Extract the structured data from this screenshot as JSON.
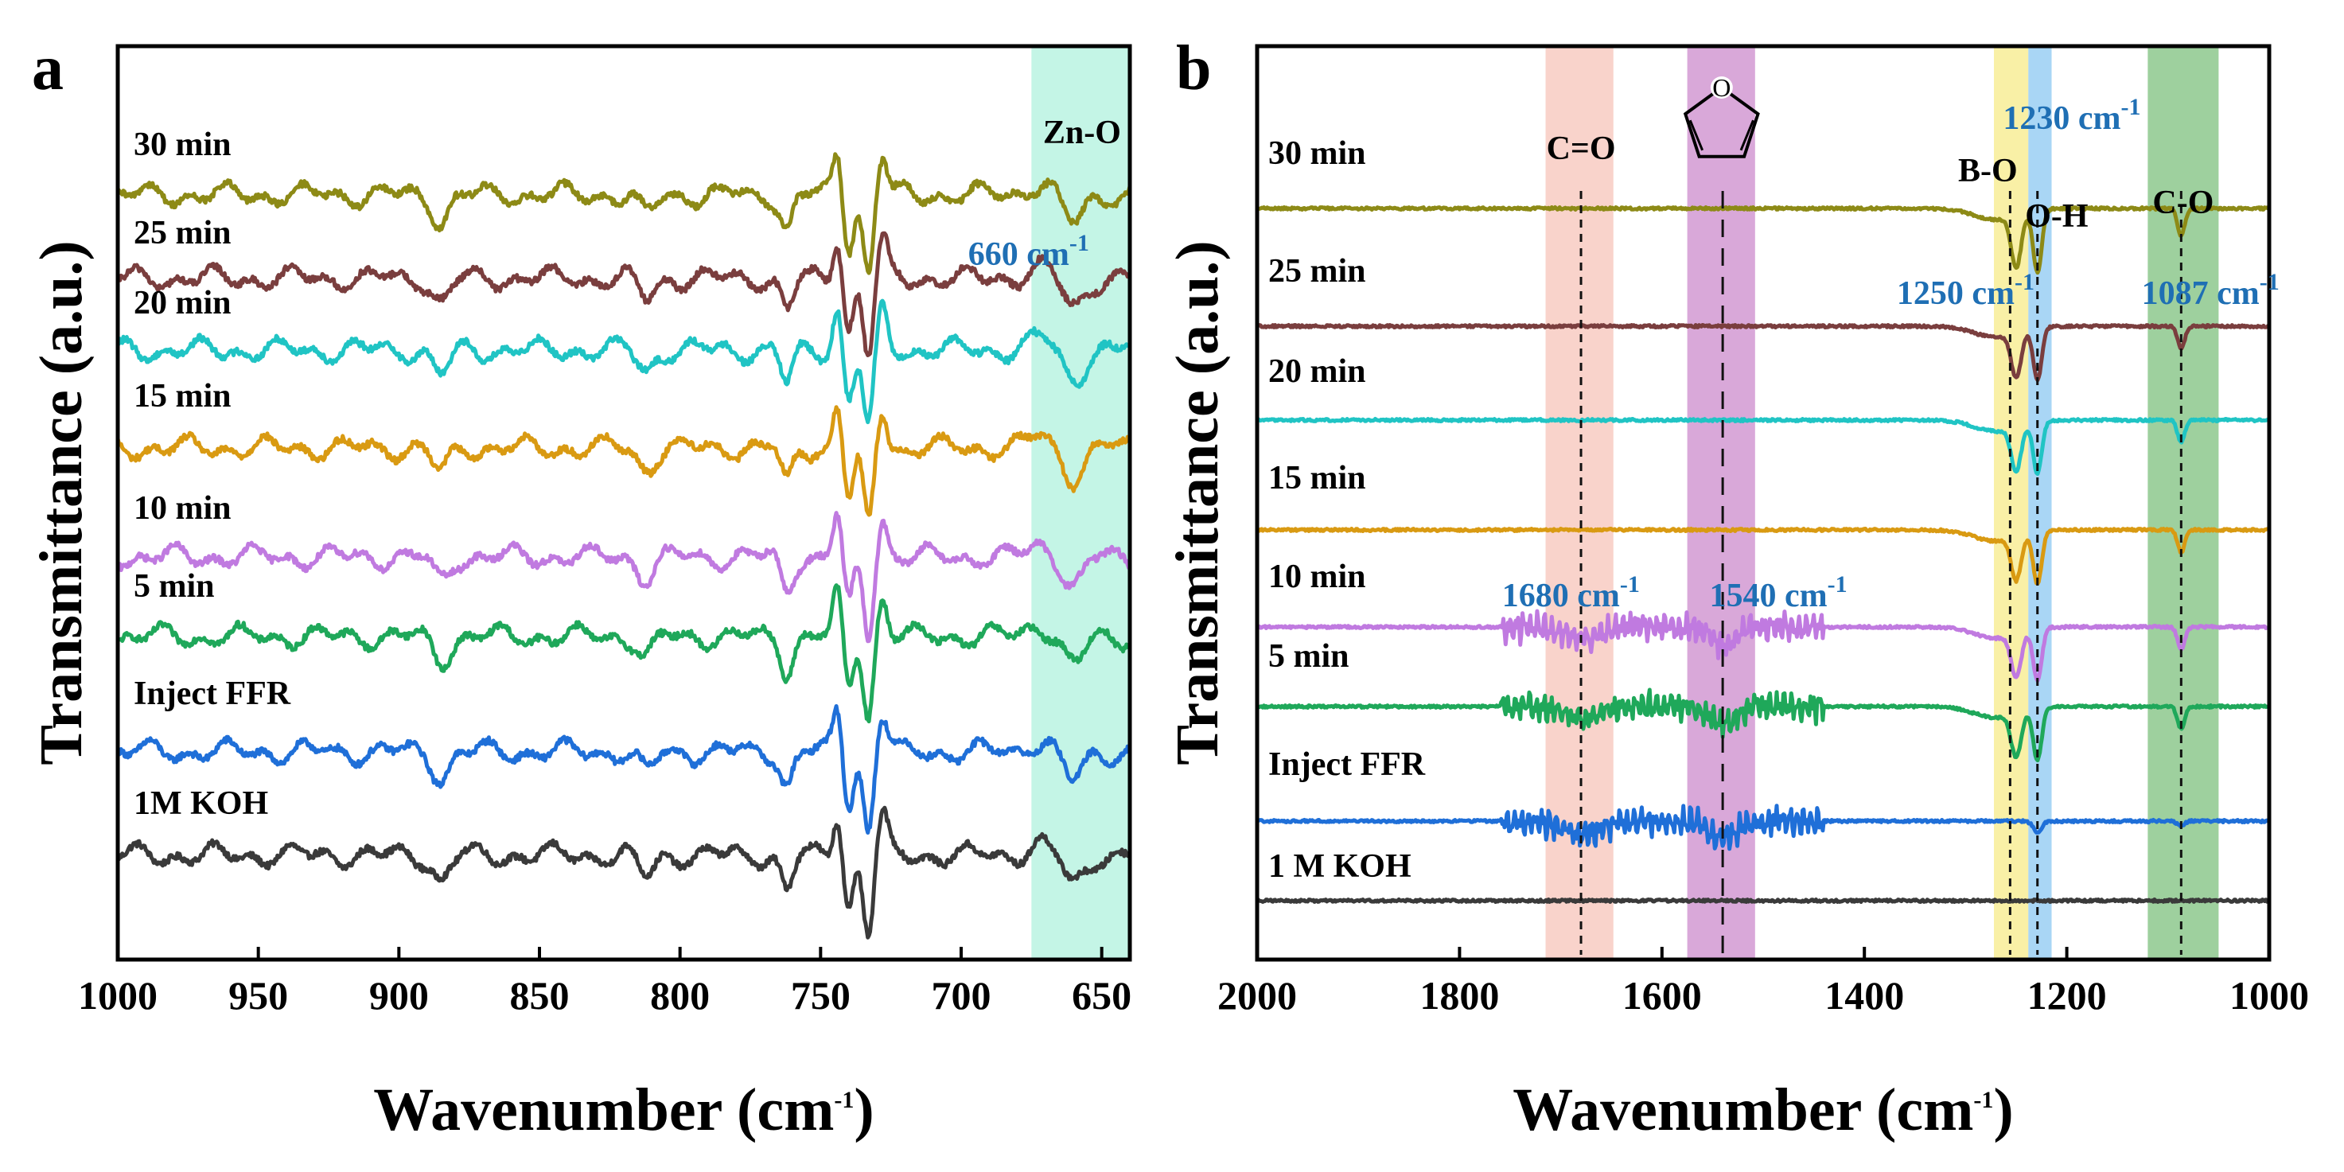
{
  "chart_data": [
    {
      "panel": "a",
      "type": "line",
      "xlabel": "Wavenumber",
      "xlabel_unit": "(cm",
      "xlabel_unit_sup": "-1",
      "xlabel_unit_close": ")",
      "ylabel": "Transmittance (a.u.)",
      "xlim": [
        1000,
        640
      ],
      "xticks": [
        1000,
        950,
        900,
        850,
        800,
        750,
        700,
        650
      ],
      "bands": [
        {
          "from": 675,
          "to": 640,
          "color": "#c4f5e6",
          "label": "Zn-O"
        }
      ],
      "annotations": [
        {
          "text": "660 cm",
          "sup": "-1",
          "color": "blue",
          "x": 660
        }
      ],
      "series": [
        {
          "name": "1M KOH",
          "color": "#3a3a3a",
          "baseline": 0
        },
        {
          "name": "Inject FFR",
          "color": "#1f6fd8",
          "baseline": 1
        },
        {
          "name": "5 min",
          "color": "#1fa85a",
          "baseline": 2
        },
        {
          "name": "10 min",
          "color": "#c07ae0",
          "baseline": 3
        },
        {
          "name": "15 min",
          "color": "#d99a12",
          "baseline": 4
        },
        {
          "name": "20 min",
          "color": "#20c4c4",
          "baseline": 5
        },
        {
          "name": "25 min",
          "color": "#7a3e3e",
          "baseline": 6
        },
        {
          "name": "30 min",
          "color": "#8d8a16",
          "baseline": 7
        }
      ]
    },
    {
      "panel": "b",
      "type": "line",
      "xlabel": "Wavenumber",
      "xlabel_unit": "(cm",
      "xlabel_unit_sup": "-1",
      "xlabel_unit_close": ")",
      "ylabel": "Transmittance (a.u.)",
      "xlim": [
        2000,
        1000
      ],
      "xticks": [
        2000,
        1800,
        1600,
        1400,
        1200,
        1000
      ],
      "bands": [
        {
          "from": 1715,
          "to": 1648,
          "color": "#f9d3cb",
          "label": "C=O"
        },
        {
          "from": 1575,
          "to": 1508,
          "color": "#d9a8d9",
          "label": "furan"
        },
        {
          "from": 1272,
          "to": 1238,
          "color": "#f9f0a6",
          "label": "B-O"
        },
        {
          "from": 1238,
          "to": 1215,
          "color": "#a9d6f5",
          "label": "O-H"
        },
        {
          "from": 1120,
          "to": 1050,
          "color": "#9ed09e",
          "label": "C-O"
        }
      ],
      "annotations": [
        {
          "text": "1680 cm",
          "sup": "-1",
          "color": "blue",
          "x": 1680
        },
        {
          "text": "1540 cm",
          "sup": "-1",
          "color": "blue",
          "x": 1540
        },
        {
          "text": "1250 cm",
          "sup": "-1",
          "color": "blue",
          "x": 1250
        },
        {
          "text": "1230 cm",
          "sup": "-1",
          "color": "blue",
          "x": 1230
        },
        {
          "text": "1087 cm",
          "sup": "-1",
          "color": "blue",
          "x": 1087
        }
      ],
      "series": [
        {
          "name": "1 M KOH",
          "color": "#3a3a3a",
          "baseline": 0
        },
        {
          "name": "Inject FFR",
          "color": "#1f6fd8",
          "baseline": 1
        },
        {
          "name": "5 min",
          "color": "#1fa85a",
          "baseline": 2
        },
        {
          "name": "10 min",
          "color": "#c07ae0",
          "baseline": 3
        },
        {
          "name": "15 min",
          "color": "#d99a12",
          "baseline": 4
        },
        {
          "name": "20 min",
          "color": "#20c4c4",
          "baseline": 5
        },
        {
          "name": "25 min",
          "color": "#7a3e3e",
          "baseline": 6
        },
        {
          "name": "30 min",
          "color": "#8d8a16",
          "baseline": 7
        }
      ]
    }
  ]
}
